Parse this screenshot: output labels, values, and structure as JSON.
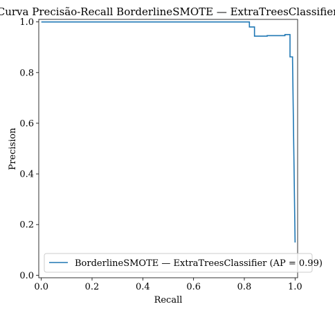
{
  "chart_data": {
    "type": "line",
    "title": "Curva Precisão-Recall BorderlineSMOTE — ExtraTreesClassifier",
    "xlabel": "Recall",
    "ylabel": "Precision",
    "xlim": [
      -0.01,
      1.01
    ],
    "ylim": [
      -0.01,
      1.01
    ],
    "xticks": [
      0.0,
      0.2,
      0.4,
      0.6,
      0.8,
      1.0
    ],
    "yticks": [
      0.0,
      0.2,
      0.4,
      0.6,
      0.8,
      1.0
    ],
    "xtick_labels": [
      "0.0",
      "0.2",
      "0.4",
      "0.6",
      "0.8",
      "1.0"
    ],
    "ytick_labels": [
      "0.0",
      "0.2",
      "0.4",
      "0.6",
      "0.8",
      "1.0"
    ],
    "grid": false,
    "legend_position": "bottom-right",
    "series": [
      {
        "name": "BorderlineSMOTE — ExtraTreesClassifier (AP = 0.99)",
        "color": "#1f77b4",
        "drawstyle": "steps-post",
        "x": [
          0.0,
          0.82,
          0.82,
          0.84,
          0.84,
          0.89,
          0.89,
          0.96,
          0.96,
          0.98,
          0.98,
          0.99,
          0.99,
          1.0
        ],
        "y": [
          1.0,
          1.0,
          0.98,
          0.98,
          0.944,
          0.944,
          0.946,
          0.946,
          0.95,
          0.95,
          0.862,
          0.862,
          0.851,
          0.129
        ]
      }
    ]
  }
}
